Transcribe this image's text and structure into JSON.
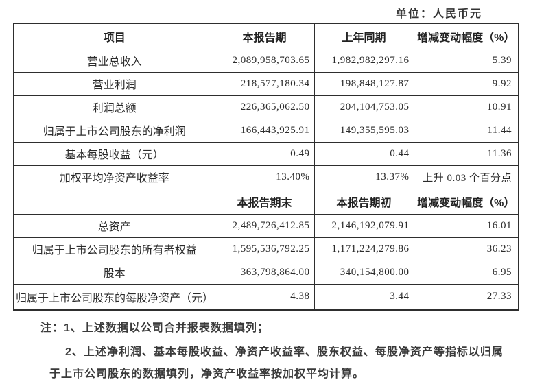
{
  "unit_label": "单位：人民币元",
  "table": {
    "header1": {
      "col1": "项目",
      "col2": "本报告期",
      "col3": "上年同期",
      "col4": "增减变动幅度（%）"
    },
    "rows1": [
      {
        "label": "营业总收入",
        "current": "2,089,958,703.65",
        "prior": "1,982,982,297.16",
        "change": "5.39"
      },
      {
        "label": "营业利润",
        "current": "218,577,180.34",
        "prior": "198,848,127.87",
        "change": "9.92"
      },
      {
        "label": "利润总额",
        "current": "226,365,062.50",
        "prior": "204,104,753.05",
        "change": "10.91"
      },
      {
        "label": "归属于上市公司股东的净利润",
        "current": "166,443,925.91",
        "prior": "149,355,595.03",
        "change": "11.44"
      },
      {
        "label": "基本每股收益（元）",
        "current": "0.49",
        "prior": "0.44",
        "change": "11.36"
      },
      {
        "label": "加权平均净资产收益率",
        "current": "13.40%",
        "prior": "13.37%",
        "change": "上升 0.03 个百分点"
      }
    ],
    "header2": {
      "col1": "",
      "col2": "本报告期末",
      "col3": "本报告期初",
      "col4": "增减变动幅度（%）"
    },
    "rows2": [
      {
        "label": "总资产",
        "current": "2,489,726,412.85",
        "prior": "2,146,192,079.91",
        "change": "16.01"
      },
      {
        "label": "归属于上市公司股东的所有者权益",
        "current": "1,595,536,792.25",
        "prior": "1,171,224,279.86",
        "change": "36.23"
      },
      {
        "label": "股本",
        "current": "363,798,864.00",
        "prior": "340,154,800.00",
        "change": "6.95"
      },
      {
        "label": "归属于上市公司股东的每股净资产（元）",
        "current": "4.38",
        "prior": "3.44",
        "change": "27.33"
      }
    ]
  },
  "notes": {
    "line1": "注：1、上述数据以公司合并报表数据填列；",
    "line2": "2、上述净利润、基本每股收益、净资产收益率、股东权益、每股净资产等指标以归属",
    "line3": "于上市公司股东的数据填列，净资产收益率按加权平均计算。"
  }
}
